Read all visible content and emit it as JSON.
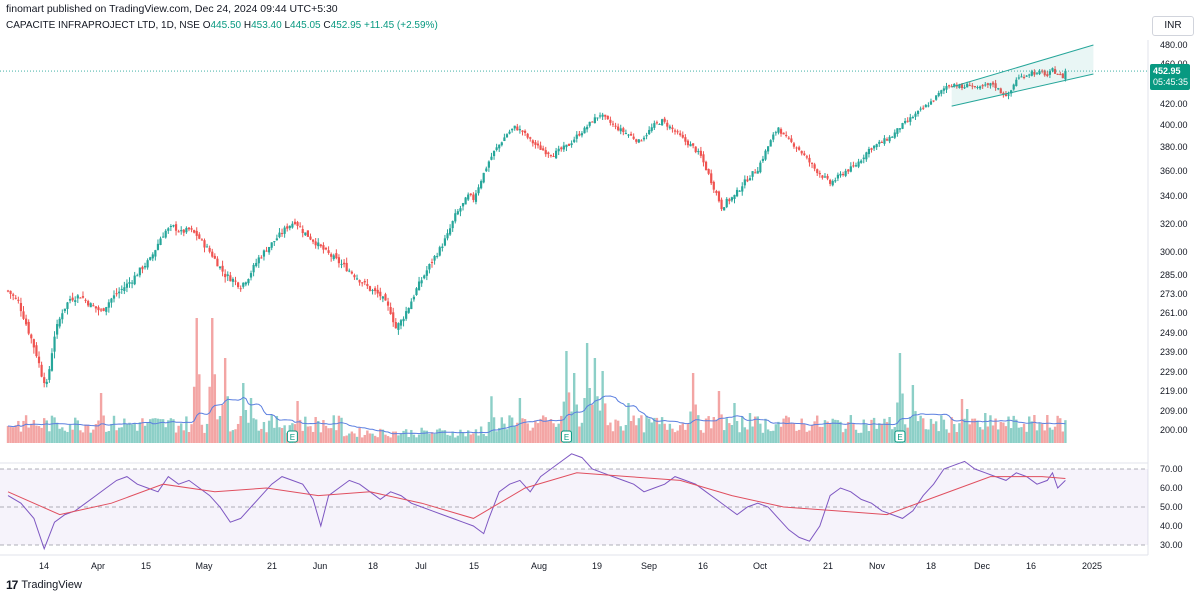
{
  "header": {
    "publisher": "finomart published on TradingView.com, Dec 24, 2024 09:44 UTC+5:30"
  },
  "legend": {
    "symbol": "CAPACITE INFRAPROJECT LTD, 1D, NSE",
    "open_label": "O",
    "open": "445.50",
    "high_label": "H",
    "high": "453.40",
    "low_label": "L",
    "low": "445.05",
    "close_label": "C",
    "close": "452.95",
    "change": "+11.45 (+2.59%)"
  },
  "currency": "INR",
  "price_tag": {
    "price": "452.95",
    "countdown": "05:45:35"
  },
  "footer": {
    "logo": "17",
    "brand": "TradingView"
  },
  "colors": {
    "up": "#26a69a",
    "down": "#ef5350",
    "vol_up": "#8ccfc7",
    "vol_down": "#f3a5a4",
    "vol_ma": "#5b7fe0",
    "rsi": "#7e57c2",
    "rsi_ma": "#e04f5f",
    "channel": "#26a69a"
  },
  "chart_data": [
    {
      "type": "candlestick",
      "price_axis_ticks": [
        "480.00",
        "460.00",
        "440.00",
        "420.00",
        "400.00",
        "380.00",
        "360.00",
        "340.00",
        "320.00",
        "300.00",
        "285.00",
        "273.00",
        "261.00",
        "249.00",
        "239.00",
        "229.00",
        "219.00",
        "209.00",
        "200.00"
      ],
      "x_tick_labels": [
        "14",
        "Apr",
        "15",
        "May",
        "21",
        "Jun",
        "18",
        "Jul",
        "15",
        "Aug",
        "19",
        "Sep",
        "16",
        "Oct",
        "21",
        "Nov",
        "18",
        "Dec",
        "16",
        "2025"
      ],
      "close_path": [
        [
          0,
          275
        ],
        [
          4,
          268
        ],
        [
          8,
          250
        ],
        [
          11,
          238
        ],
        [
          13,
          228
        ],
        [
          15,
          222
        ],
        [
          18,
          248
        ],
        [
          21,
          262
        ],
        [
          24,
          270
        ],
        [
          28,
          272
        ],
        [
          32,
          266
        ],
        [
          36,
          262
        ],
        [
          40,
          270
        ],
        [
          44,
          276
        ],
        [
          48,
          282
        ],
        [
          52,
          290
        ],
        [
          55,
          295
        ],
        [
          57,
          302
        ],
        [
          59,
          310
        ],
        [
          61,
          315
        ],
        [
          64,
          318
        ],
        [
          67,
          314
        ],
        [
          70,
          316
        ],
        [
          73,
          312
        ],
        [
          76,
          305
        ],
        [
          79,
          298
        ],
        [
          82,
          290
        ],
        [
          84,
          285
        ],
        [
          87,
          282
        ],
        [
          90,
          278
        ],
        [
          93,
          284
        ],
        [
          97,
          296
        ],
        [
          101,
          304
        ],
        [
          105,
          312
        ],
        [
          108,
          318
        ],
        [
          111,
          322
        ],
        [
          114,
          315
        ],
        [
          117,
          310
        ],
        [
          120,
          305
        ],
        [
          123,
          300
        ],
        [
          126,
          296
        ],
        [
          129,
          292
        ],
        [
          132,
          288
        ],
        [
          136,
          282
        ],
        [
          140,
          276
        ],
        [
          144,
          272
        ],
        [
          148,
          262
        ],
        [
          150,
          252
        ],
        [
          152,
          256
        ],
        [
          155,
          265
        ],
        [
          158,
          276
        ],
        [
          161,
          285
        ],
        [
          164,
          294
        ],
        [
          167,
          302
        ],
        [
          170,
          312
        ],
        [
          173,
          326
        ],
        [
          176,
          334
        ],
        [
          178,
          340
        ],
        [
          180,
          338
        ],
        [
          182,
          348
        ],
        [
          184,
          358
        ],
        [
          186,
          368
        ],
        [
          188,
          376
        ],
        [
          190,
          382
        ],
        [
          193,
          392
        ],
        [
          196,
          398
        ],
        [
          199,
          394
        ],
        [
          202,
          386
        ],
        [
          205,
          380
        ],
        [
          208,
          376
        ],
        [
          211,
          374
        ],
        [
          214,
          378
        ],
        [
          217,
          382
        ],
        [
          220,
          390
        ],
        [
          223,
          396
        ],
        [
          226,
          404
        ],
        [
          229,
          410
        ],
        [
          232,
          404
        ],
        [
          235,
          398
        ],
        [
          238,
          394
        ],
        [
          241,
          390
        ],
        [
          244,
          385
        ],
        [
          247,
          392
        ],
        [
          250,
          400
        ],
        [
          253,
          404
        ],
        [
          256,
          398
        ],
        [
          259,
          392
        ],
        [
          262,
          385
        ],
        [
          265,
          380
        ],
        [
          268,
          372
        ],
        [
          270,
          362
        ],
        [
          272,
          352
        ],
        [
          274,
          342
        ],
        [
          276,
          332
        ],
        [
          278,
          336
        ],
        [
          281,
          340
        ],
        [
          284,
          349
        ],
        [
          287,
          356
        ],
        [
          290,
          362
        ],
        [
          293,
          376
        ],
        [
          296,
          390
        ],
        [
          298,
          398
        ],
        [
          300,
          390
        ],
        [
          303,
          384
        ],
        [
          306,
          378
        ],
        [
          309,
          370
        ],
        [
          312,
          362
        ],
        [
          315,
          356
        ],
        [
          318,
          350
        ],
        [
          321,
          355
        ],
        [
          324,
          360
        ],
        [
          327,
          363
        ],
        [
          330,
          370
        ],
        [
          333,
          378
        ],
        [
          336,
          382
        ],
        [
          339,
          386
        ],
        [
          342,
          390
        ],
        [
          345,
          398
        ],
        [
          348,
          404
        ],
        [
          351,
          410
        ],
        [
          354,
          416
        ],
        [
          357,
          422
        ],
        [
          360,
          430
        ],
        [
          363,
          438
        ],
        [
          366,
          440
        ],
        [
          369,
          436
        ],
        [
          372,
          440
        ],
        [
          375,
          435
        ],
        [
          378,
          438
        ],
        [
          381,
          440
        ],
        [
          384,
          432
        ],
        [
          387,
          428
        ],
        [
          390,
          445
        ],
        [
          393,
          448
        ],
        [
          396,
          452
        ],
        [
          398,
          450
        ],
        [
          400,
          452
        ],
        [
          402,
          448
        ],
        [
          404,
          454
        ],
        [
          406,
          450
        ],
        [
          408,
          447
        ],
        [
          409,
          453
        ]
      ],
      "channel": {
        "upper_start": [
          365,
          437
        ],
        "upper_end": [
          409,
          480
        ],
        "lower_start": [
          365,
          418
        ],
        "lower_end": [
          409,
          450
        ]
      }
    },
    {
      "type": "bar",
      "name": "Volume",
      "pattern_note": "",
      "events_label": "E"
    },
    {
      "type": "line",
      "name": "RSI",
      "axis_ticks": [
        "70.00",
        "60.00",
        "50.00",
        "40.00",
        "30.00"
      ],
      "levels": [
        70,
        50,
        30
      ],
      "rsi_path": [
        [
          0,
          56
        ],
        [
          5,
          52
        ],
        [
          10,
          44
        ],
        [
          14,
          28
        ],
        [
          18,
          42
        ],
        [
          22,
          46
        ],
        [
          26,
          48
        ],
        [
          30,
          52
        ],
        [
          34,
          56
        ],
        [
          38,
          60
        ],
        [
          42,
          64
        ],
        [
          46,
          66
        ],
        [
          50,
          62
        ],
        [
          54,
          60
        ],
        [
          58,
          58
        ],
        [
          62,
          66
        ],
        [
          66,
          62
        ],
        [
          70,
          64
        ],
        [
          74,
          60
        ],
        [
          78,
          56
        ],
        [
          82,
          50
        ],
        [
          86,
          42
        ],
        [
          90,
          44
        ],
        [
          94,
          50
        ],
        [
          98,
          56
        ],
        [
          102,
          62
        ],
        [
          106,
          66
        ],
        [
          110,
          64
        ],
        [
          114,
          62
        ],
        [
          118,
          54
        ],
        [
          121,
          40
        ],
        [
          124,
          56
        ],
        [
          128,
          60
        ],
        [
          132,
          64
        ],
        [
          136,
          62
        ],
        [
          140,
          58
        ],
        [
          144,
          54
        ],
        [
          148,
          58
        ],
        [
          152,
          56
        ],
        [
          156,
          52
        ],
        [
          160,
          50
        ],
        [
          164,
          48
        ],
        [
          168,
          46
        ],
        [
          172,
          44
        ],
        [
          176,
          42
        ],
        [
          180,
          40
        ],
        [
          184,
          36
        ],
        [
          186,
          44
        ],
        [
          190,
          58
        ],
        [
          194,
          62
        ],
        [
          198,
          64
        ],
        [
          202,
          58
        ],
        [
          206,
          66
        ],
        [
          210,
          70
        ],
        [
          214,
          74
        ],
        [
          218,
          78
        ],
        [
          222,
          76
        ],
        [
          226,
          70
        ],
        [
          230,
          68
        ],
        [
          234,
          66
        ],
        [
          238,
          64
        ],
        [
          242,
          62
        ],
        [
          246,
          58
        ],
        [
          250,
          60
        ],
        [
          254,
          62
        ],
        [
          258,
          66
        ],
        [
          262,
          64
        ],
        [
          266,
          62
        ],
        [
          270,
          58
        ],
        [
          274,
          54
        ],
        [
          278,
          50
        ],
        [
          282,
          46
        ],
        [
          286,
          50
        ],
        [
          290,
          52
        ],
        [
          294,
          50
        ],
        [
          298,
          44
        ],
        [
          302,
          38
        ],
        [
          306,
          34
        ],
        [
          310,
          32
        ],
        [
          314,
          40
        ],
        [
          318,
          56
        ],
        [
          322,
          60
        ],
        [
          326,
          58
        ],
        [
          330,
          54
        ],
        [
          334,
          52
        ],
        [
          338,
          48
        ],
        [
          342,
          46
        ],
        [
          346,
          44
        ],
        [
          350,
          48
        ],
        [
          354,
          56
        ],
        [
          358,
          62
        ],
        [
          362,
          70
        ],
        [
          366,
          72
        ],
        [
          370,
          74
        ],
        [
          374,
          70
        ],
        [
          378,
          68
        ],
        [
          382,
          66
        ],
        [
          386,
          64
        ],
        [
          390,
          68
        ],
        [
          394,
          66
        ],
        [
          398,
          62
        ],
        [
          402,
          64
        ],
        [
          404,
          68
        ],
        [
          406,
          60
        ],
        [
          409,
          64
        ]
      ],
      "rsi_ma_path": [
        [
          0,
          58
        ],
        [
          20,
          46
        ],
        [
          40,
          52
        ],
        [
          60,
          62
        ],
        [
          80,
          58
        ],
        [
          100,
          60
        ],
        [
          120,
          56
        ],
        [
          140,
          58
        ],
        [
          160,
          52
        ],
        [
          180,
          44
        ],
        [
          200,
          60
        ],
        [
          220,
          68
        ],
        [
          240,
          66
        ],
        [
          260,
          64
        ],
        [
          280,
          56
        ],
        [
          300,
          50
        ],
        [
          320,
          48
        ],
        [
          340,
          46
        ],
        [
          360,
          56
        ],
        [
          380,
          66
        ],
        [
          400,
          66
        ],
        [
          409,
          65
        ]
      ]
    }
  ]
}
